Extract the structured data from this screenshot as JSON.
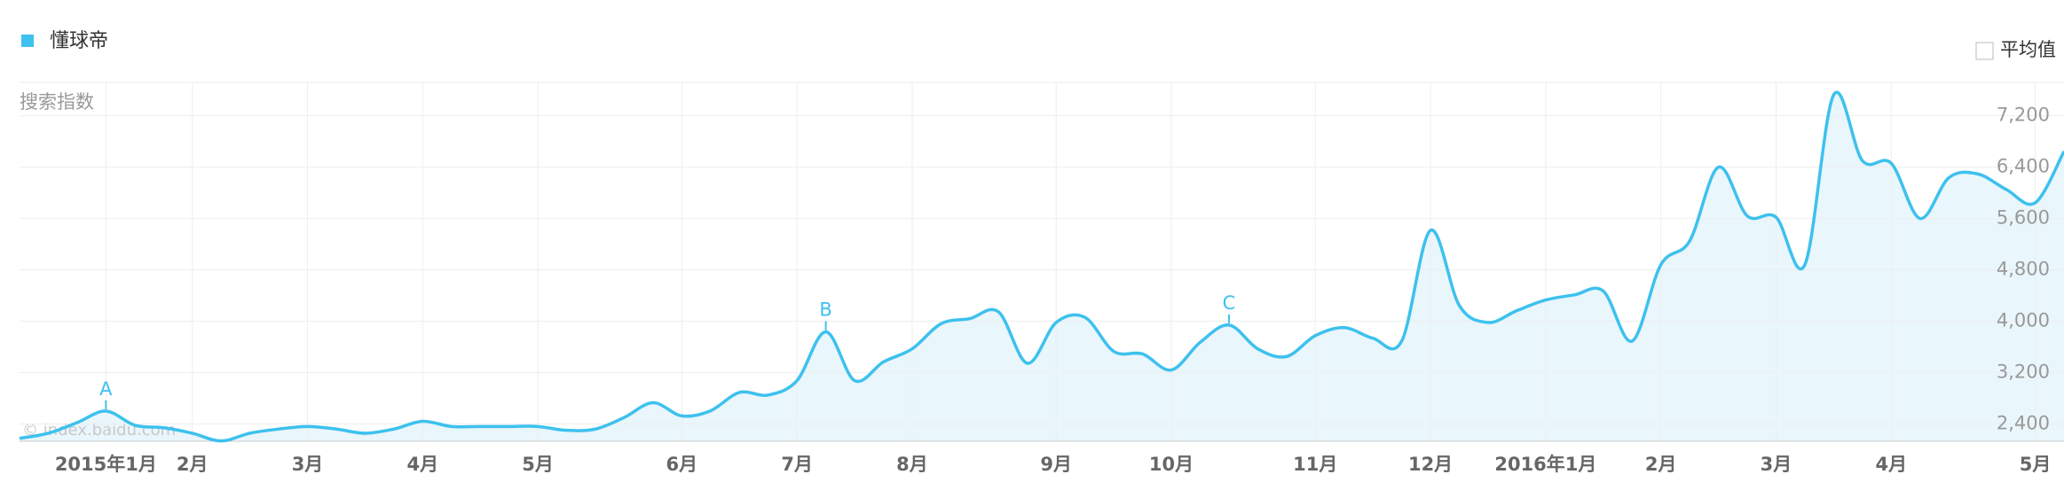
{
  "chart_data": {
    "type": "line",
    "y_label": "搜索指数",
    "watermark": "© index.baidu.com",
    "average_toggle": "平均值",
    "categories": [
      null,
      null,
      null,
      "2015年1月",
      null,
      null,
      "2月",
      null,
      null,
      null,
      "3月",
      null,
      null,
      null,
      "4月",
      null,
      null,
      null,
      "5月",
      null,
      null,
      null,
      null,
      "6月",
      null,
      null,
      null,
      "7月",
      null,
      null,
      null,
      "8月",
      null,
      null,
      null,
      null,
      "9月",
      null,
      null,
      null,
      "10月",
      null,
      null,
      null,
      null,
      "11月",
      null,
      null,
      null,
      "12月",
      null,
      null,
      null,
      "2016年1月",
      null,
      null,
      null,
      "2月",
      null,
      null,
      null,
      "3月",
      null,
      null,
      null,
      "4月",
      null,
      null,
      null,
      null,
      "5月",
      null
    ],
    "series": [
      {
        "name": "懂球帝",
        "color": "#3dc1ee",
        "values": [
          2175,
          2255,
          2420,
          2600,
          2380,
          2340,
          2255,
          2135,
          2255,
          2320,
          2360,
          2320,
          2255,
          2320,
          2440,
          2360,
          2360,
          2360,
          2360,
          2300,
          2320,
          2500,
          2730,
          2525,
          2605,
          2890,
          2850,
          3075,
          3835,
          3075,
          3365,
          3570,
          3960,
          4040,
          4145,
          3345,
          3980,
          4060,
          3530,
          3490,
          3240,
          3670,
          3940,
          3570,
          3450,
          3775,
          3900,
          3735,
          3690,
          5415,
          4245,
          3980,
          4165,
          4330,
          4410,
          4470,
          3690,
          4880,
          5250,
          6400,
          5640,
          5620,
          4880,
          7525,
          6500,
          6460,
          5600,
          6235,
          6295,
          6050,
          5845,
          6645
        ],
        "point_labels": [
          null,
          null,
          null,
          "A",
          null,
          null,
          null,
          null,
          null,
          null,
          null,
          null,
          null,
          null,
          null,
          null,
          null,
          null,
          null,
          null,
          null,
          null,
          null,
          null,
          null,
          null,
          null,
          null,
          "B",
          null,
          null,
          null,
          null,
          null,
          null,
          null,
          null,
          null,
          null,
          null,
          null,
          null,
          "C",
          null,
          null,
          null,
          null,
          null,
          null,
          null,
          null,
          null,
          null,
          null,
          null,
          null,
          null,
          null,
          null,
          null,
          null,
          null,
          null,
          null,
          null,
          null,
          null,
          null,
          null,
          null,
          null,
          null
        ]
      }
    ],
    "ylim": [
      2130,
      7720
    ],
    "yticks": [
      {
        "value": 2400,
        "label": "2,400"
      },
      {
        "value": 3200,
        "label": "3,200"
      },
      {
        "value": 4000,
        "label": "4,000"
      },
      {
        "value": 4800,
        "label": "4,800"
      },
      {
        "value": 5600,
        "label": "5,600"
      },
      {
        "value": 6400,
        "label": "6,400"
      },
      {
        "value": 7200,
        "label": "7,200"
      }
    ],
    "grid": true,
    "fill_color": "#e9f6fc",
    "legend": "top-left"
  }
}
